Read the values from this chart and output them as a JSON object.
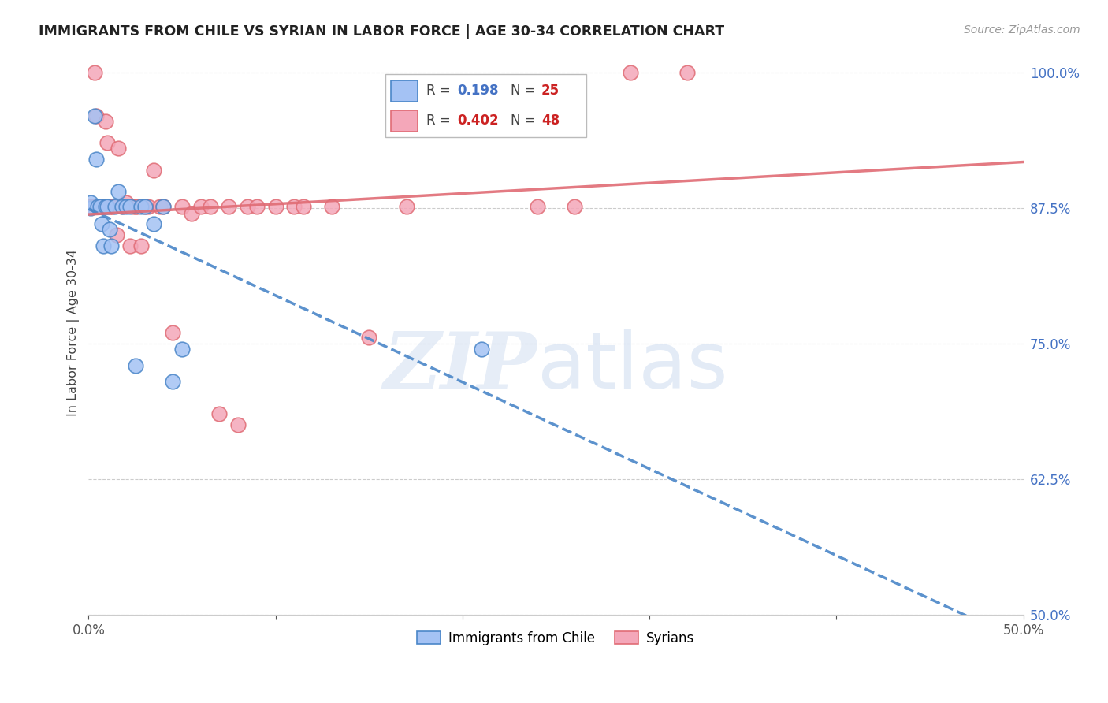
{
  "title": "IMMIGRANTS FROM CHILE VS SYRIAN IN LABOR FORCE | AGE 30-34 CORRELATION CHART",
  "source": "Source: ZipAtlas.com",
  "ylabel": "In Labor Force | Age 30-34",
  "xlim": [
    0.0,
    0.5
  ],
  "ylim": [
    0.5,
    1.02
  ],
  "yticks": [
    0.5,
    0.625,
    0.75,
    0.875,
    1.0
  ],
  "ytick_labels": [
    "50.0%",
    "62.5%",
    "75.0%",
    "87.5%",
    "100.0%"
  ],
  "xticks": [
    0.0,
    0.1,
    0.2,
    0.3,
    0.4,
    0.5
  ],
  "xtick_labels": [
    "0.0%",
    "",
    "",
    "",
    "",
    "50.0%"
  ],
  "chile_color": "#a4c2f4",
  "syria_color": "#f4a7b9",
  "chile_edge": "#4a86c8",
  "syria_edge": "#e06c75",
  "chile_R": 0.198,
  "chile_N": 25,
  "syria_R": 0.402,
  "syria_N": 48,
  "chile_x": [
    0.001,
    0.001,
    0.003,
    0.004,
    0.005,
    0.006,
    0.007,
    0.008,
    0.009,
    0.01,
    0.011,
    0.012,
    0.014,
    0.016,
    0.018,
    0.02,
    0.022,
    0.025,
    0.028,
    0.03,
    0.035,
    0.04,
    0.045,
    0.05,
    0.21
  ],
  "chile_y": [
    0.875,
    0.88,
    0.96,
    0.92,
    0.876,
    0.876,
    0.86,
    0.84,
    0.876,
    0.876,
    0.855,
    0.84,
    0.876,
    0.89,
    0.876,
    0.876,
    0.876,
    0.73,
    0.876,
    0.876,
    0.86,
    0.876,
    0.715,
    0.745,
    0.745
  ],
  "syria_x": [
    0.001,
    0.001,
    0.001,
    0.003,
    0.004,
    0.005,
    0.006,
    0.007,
    0.008,
    0.009,
    0.01,
    0.011,
    0.012,
    0.013,
    0.015,
    0.016,
    0.018,
    0.02,
    0.022,
    0.024,
    0.025,
    0.026,
    0.028,
    0.03,
    0.032,
    0.035,
    0.038,
    0.04,
    0.045,
    0.05,
    0.055,
    0.06,
    0.065,
    0.07,
    0.075,
    0.08,
    0.085,
    0.09,
    0.1,
    0.11,
    0.115,
    0.13,
    0.15,
    0.17,
    0.24,
    0.26,
    0.29,
    0.32
  ],
  "syria_y": [
    0.876,
    0.876,
    0.876,
    1.0,
    0.96,
    0.876,
    0.876,
    0.876,
    0.876,
    0.955,
    0.935,
    0.876,
    0.876,
    0.876,
    0.85,
    0.93,
    0.876,
    0.88,
    0.84,
    0.876,
    0.876,
    0.876,
    0.84,
    0.876,
    0.876,
    0.91,
    0.876,
    0.876,
    0.76,
    0.876,
    0.87,
    0.876,
    0.876,
    0.685,
    0.876,
    0.675,
    0.876,
    0.876,
    0.876,
    0.876,
    0.876,
    0.876,
    0.756,
    0.876,
    0.876,
    0.876,
    1.0,
    1.0
  ],
  "grid_color": "#cccccc",
  "background_color": "#ffffff",
  "watermark_zip": "ZIP",
  "watermark_atlas": "atlas",
  "legend_label_color": "#333333",
  "legend_R_color": "#4472c4",
  "legend_N_color": "#cc2222",
  "legend_R2_color": "#cc2222",
  "legend_N2_color": "#cc2222"
}
